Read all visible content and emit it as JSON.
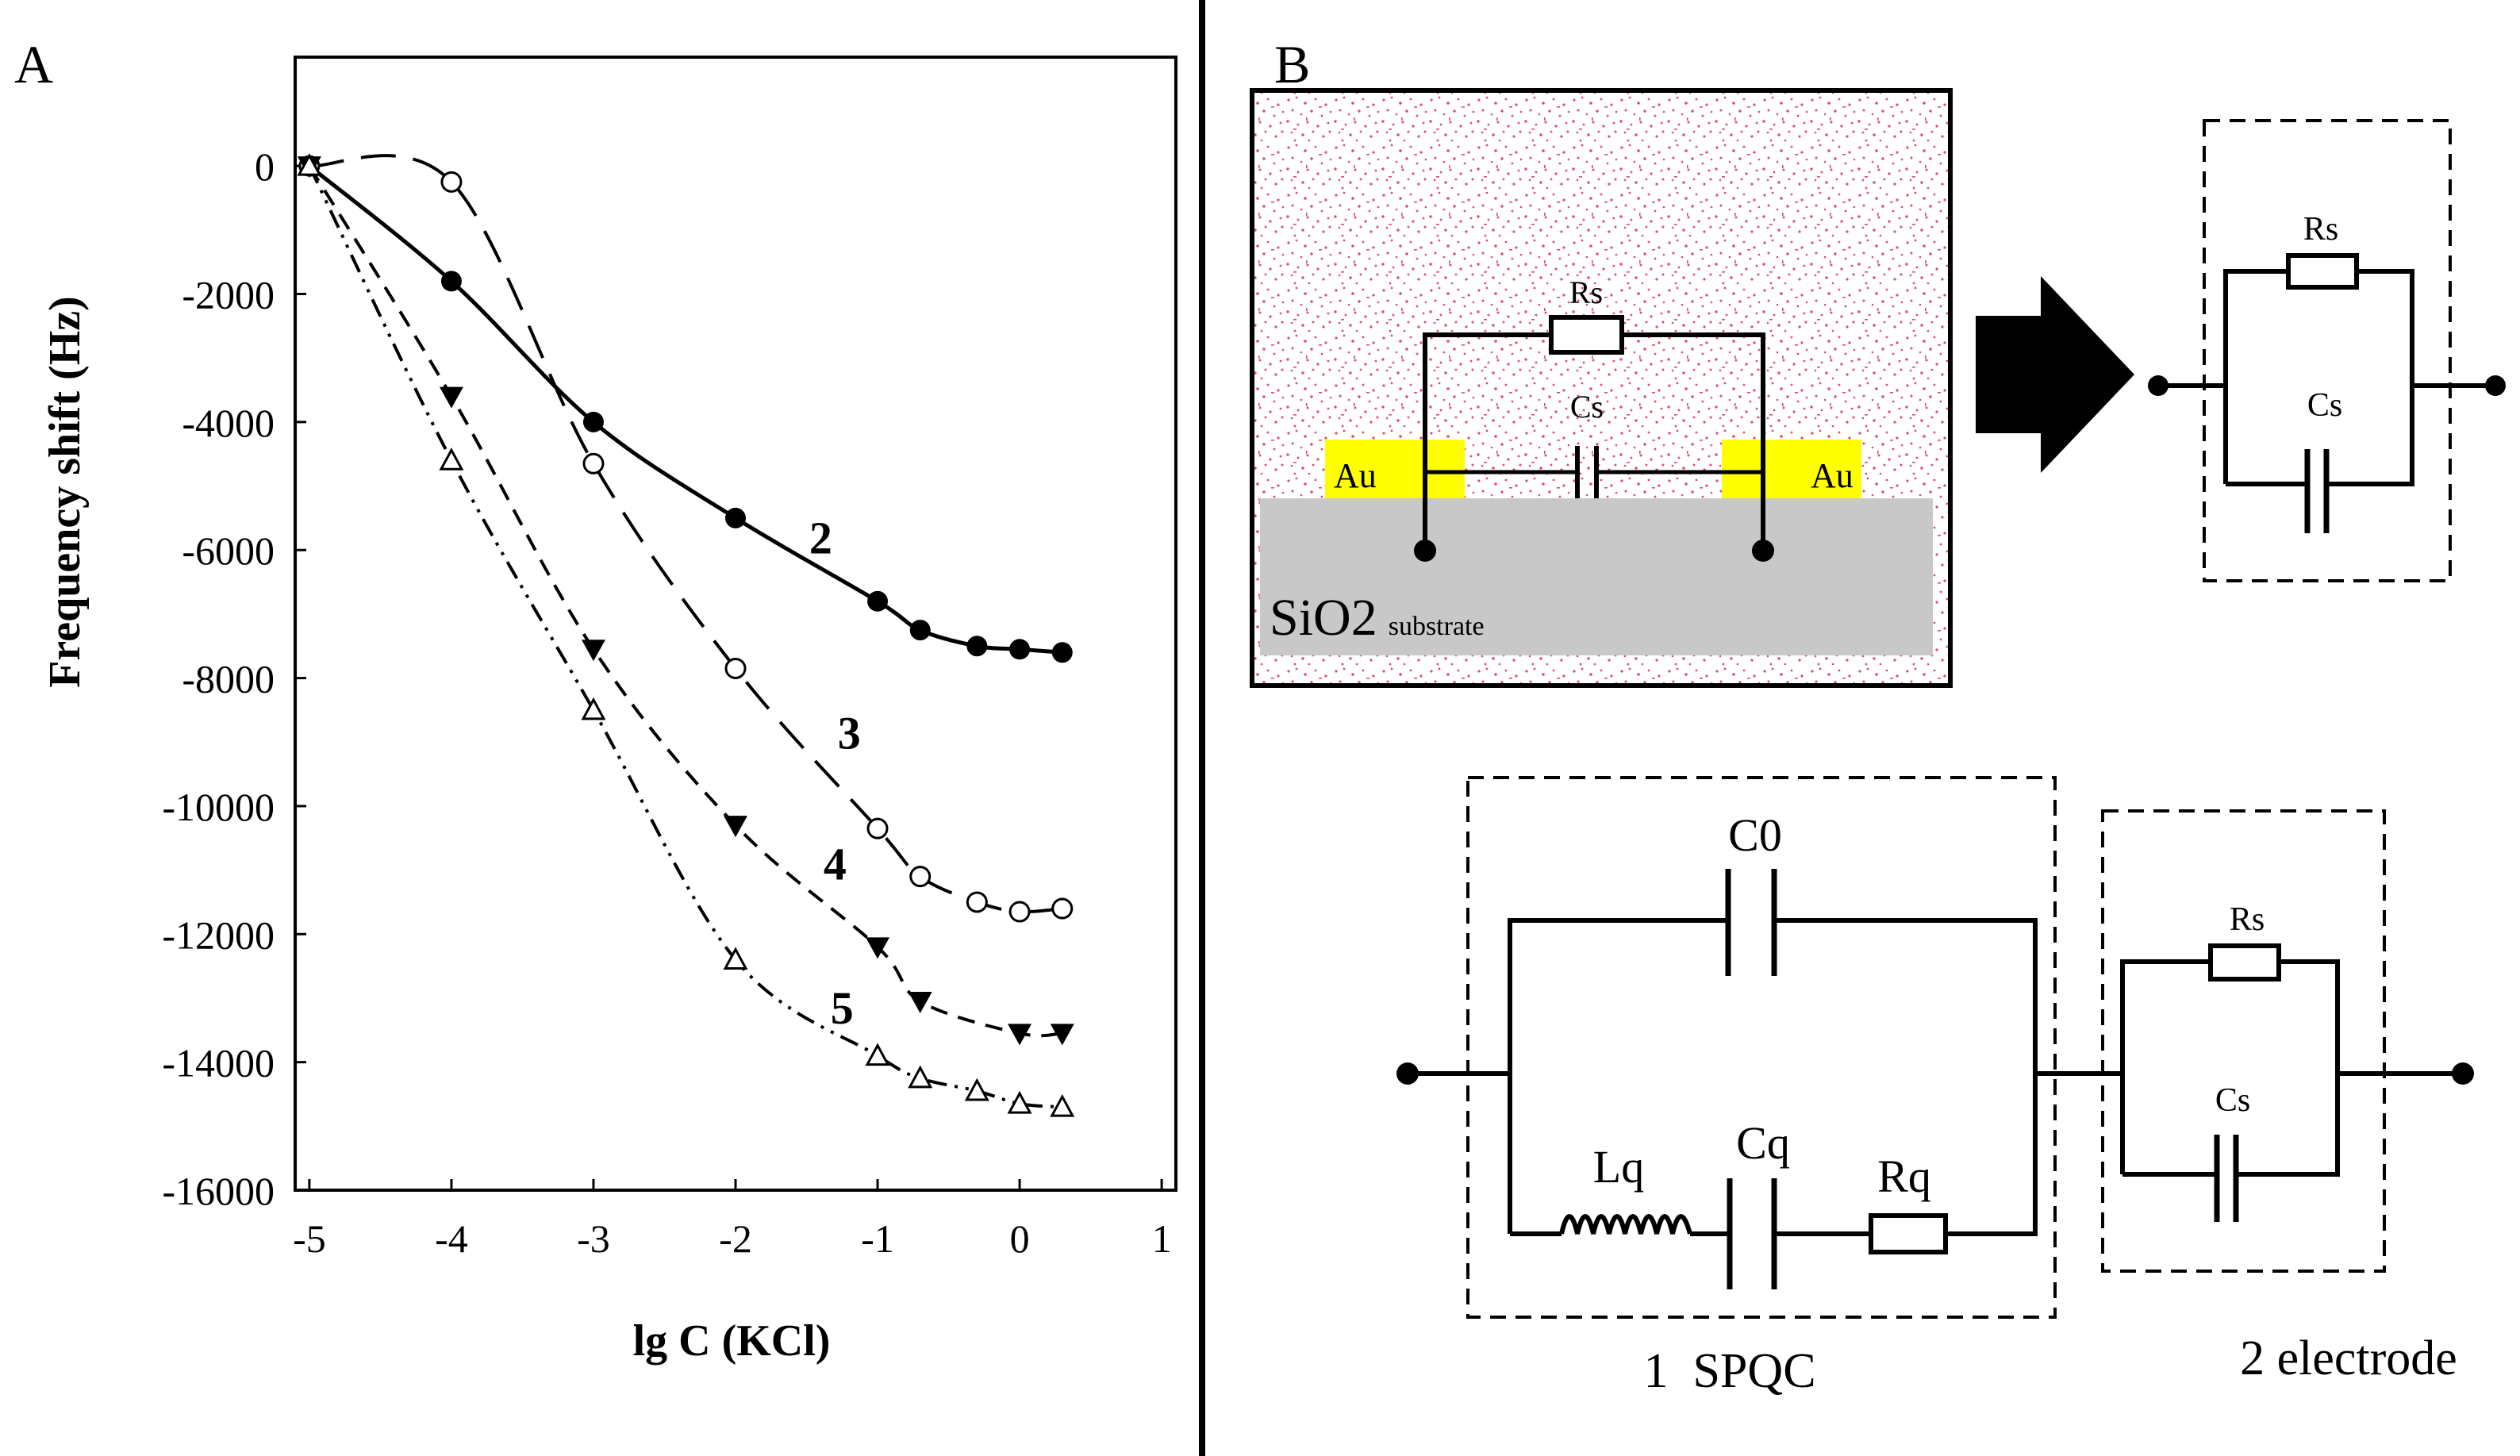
{
  "panel_a_label": "A",
  "panel_b_label": "B",
  "chart_data": {
    "type": "line",
    "title": "",
    "xlabel": "lg C (KCl)",
    "ylabel": "Frequency shift (Hz)",
    "xlim": [
      -5.1,
      1.1
    ],
    "ylim": [
      -16000,
      1700
    ],
    "xticks": [
      -5,
      -4,
      -3,
      -2,
      -1,
      0,
      1
    ],
    "yticks": [
      0,
      -2000,
      -4000,
      -6000,
      -8000,
      -10000,
      -12000,
      -14000,
      -16000
    ],
    "grid": false,
    "series": [
      {
        "name": "2",
        "marker": "filled-circle",
        "dash": "solid",
        "x": [
          -5,
          -4,
          -3,
          -2,
          -1,
          -0.7,
          -0.3,
          0,
          0.3
        ],
        "y": [
          0,
          -1800,
          -4000,
          -5500,
          -6800,
          -7250,
          -7500,
          -7550,
          -7600
        ]
      },
      {
        "name": "3",
        "marker": "open-circle",
        "dash": "long-dash",
        "x": [
          -5,
          -4,
          -3,
          -2,
          -1,
          -0.7,
          -0.3,
          0,
          0.3
        ],
        "y": [
          0,
          -250,
          -4650,
          -7850,
          -10350,
          -11100,
          -11500,
          -11650,
          -11600
        ]
      },
      {
        "name": "4",
        "marker": "filled-triangle-down",
        "dash": "dash",
        "x": [
          -5,
          -4,
          -3,
          -2,
          -1,
          -0.7,
          0,
          0.3
        ],
        "y": [
          0,
          -3600,
          -7550,
          -10300,
          -12200,
          -13050,
          -13550,
          -13550
        ]
      },
      {
        "name": "5",
        "marker": "open-triangle",
        "dash": "dash-dot-dot",
        "x": [
          -5,
          -4,
          -3,
          -2,
          -1,
          -0.7,
          -0.3,
          0,
          0.3
        ],
        "y": [
          0,
          -4600,
          -8500,
          -12400,
          -13900,
          -14250,
          -14450,
          -14650,
          -14700
        ]
      }
    ]
  },
  "diagram": {
    "substrate_label": "SiO2",
    "substrate_subscript": "substrate",
    "electrode_left": "Au",
    "electrode_right": "Au",
    "rs": "Rs",
    "cs": "Cs",
    "c0": "C0",
    "cq": "Cq",
    "lq": "Lq",
    "rq": "Rq",
    "spqc_label": "1  SPQC",
    "electrode_label": "2 electrode"
  },
  "colors": {
    "film": "#e0458a",
    "au": "#ffff00",
    "substrate": "#c8c8c8"
  }
}
